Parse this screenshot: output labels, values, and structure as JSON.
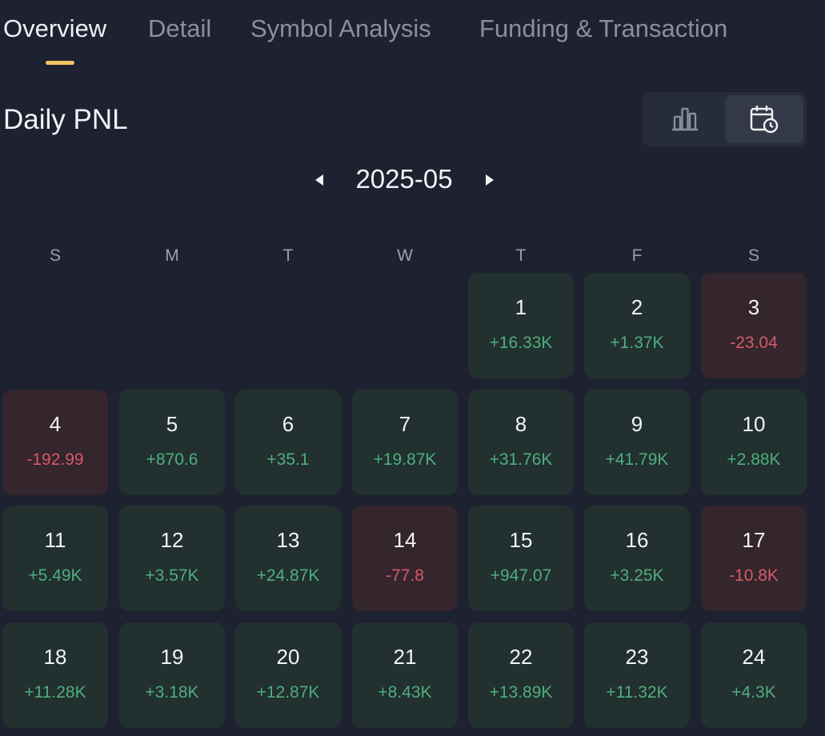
{
  "tabs": [
    {
      "label": "Overview",
      "active": true
    },
    {
      "label": "Detail",
      "active": false
    },
    {
      "label": "Symbol Analysis",
      "active": false
    },
    {
      "label": "Funding & Transaction",
      "active": false
    }
  ],
  "section": {
    "title": "Daily PNL"
  },
  "view_toggle": {
    "options": [
      "bar-chart-icon",
      "calendar-clock-icon"
    ],
    "selected": "calendar-clock-icon"
  },
  "calendar": {
    "month": "2025-05",
    "weekdays": [
      "S",
      "M",
      "T",
      "W",
      "T",
      "F",
      "S"
    ],
    "colors": {
      "profit": "#4fae7f",
      "loss": "#d45a6a",
      "profit_bg": "#22302f",
      "loss_bg": "#35252c"
    },
    "days": [
      {
        "day": "1",
        "pnl": "+16.33K",
        "type": "profit"
      },
      {
        "day": "2",
        "pnl": "+1.37K",
        "type": "profit"
      },
      {
        "day": "3",
        "pnl": "-23.04",
        "type": "loss"
      },
      {
        "day": "4",
        "pnl": "-192.99",
        "type": "loss"
      },
      {
        "day": "5",
        "pnl": "+870.6",
        "type": "profit"
      },
      {
        "day": "6",
        "pnl": "+35.1",
        "type": "profit"
      },
      {
        "day": "7",
        "pnl": "+19.87K",
        "type": "profit"
      },
      {
        "day": "8",
        "pnl": "+31.76K",
        "type": "profit"
      },
      {
        "day": "9",
        "pnl": "+41.79K",
        "type": "profit"
      },
      {
        "day": "10",
        "pnl": "+2.88K",
        "type": "profit"
      },
      {
        "day": "11",
        "pnl": "+5.49K",
        "type": "profit"
      },
      {
        "day": "12",
        "pnl": "+3.57K",
        "type": "profit"
      },
      {
        "day": "13",
        "pnl": "+24.87K",
        "type": "profit"
      },
      {
        "day": "14",
        "pnl": "-77.8",
        "type": "loss"
      },
      {
        "day": "15",
        "pnl": "+947.07",
        "type": "profit"
      },
      {
        "day": "16",
        "pnl": "+3.25K",
        "type": "profit"
      },
      {
        "day": "17",
        "pnl": "-10.8K",
        "type": "loss"
      },
      {
        "day": "18",
        "pnl": "+11.28K",
        "type": "profit"
      },
      {
        "day": "19",
        "pnl": "+3.18K",
        "type": "profit"
      },
      {
        "day": "20",
        "pnl": "+12.87K",
        "type": "profit"
      },
      {
        "day": "21",
        "pnl": "+8.43K",
        "type": "profit"
      },
      {
        "day": "22",
        "pnl": "+13.89K",
        "type": "profit"
      },
      {
        "day": "23",
        "pnl": "+11.32K",
        "type": "profit"
      },
      {
        "day": "24",
        "pnl": "+4.3K",
        "type": "profit"
      }
    ]
  }
}
